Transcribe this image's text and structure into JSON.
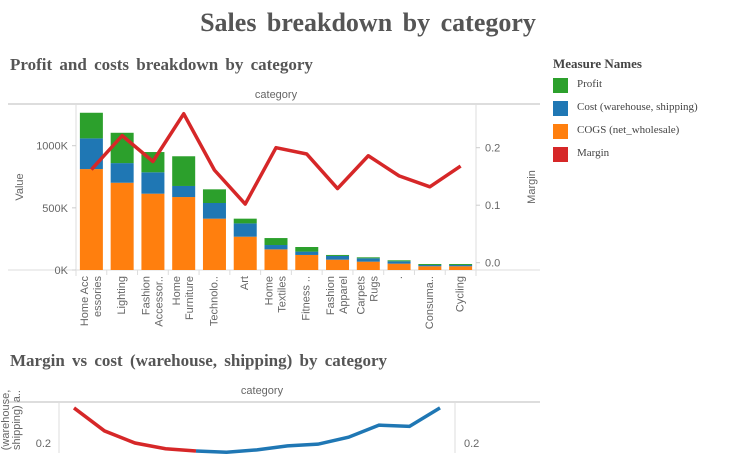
{
  "title": "Sales breakdown by category",
  "legend": {
    "title": "Measure Names",
    "items": [
      {
        "label": "Profit",
        "color": "#2ca02c"
      },
      {
        "label": "Cost (warehouse, shipping)",
        "color": "#1f77b4"
      },
      {
        "label": "COGS (net_wholesale)",
        "color": "#ff7f0e"
      },
      {
        "label": "Margin",
        "color": "#d62728"
      }
    ]
  },
  "chart_data": [
    {
      "type": "bar",
      "title": "Profit and costs breakdown by category",
      "column_header": "category",
      "ylabel": "Value",
      "y2label": "Margin",
      "ylim": [
        0,
        1300000
      ],
      "y2lim": [
        0,
        0.27
      ],
      "yticks": [
        "0K",
        "500K",
        "1000K"
      ],
      "y2ticks": [
        "0.0",
        "0.1",
        "0.2"
      ],
      "categories": [
        [
          "Home Acc",
          "essories"
        ],
        [
          "Lighting"
        ],
        [
          "Fashion",
          "Accessor.."
        ],
        [
          "Home",
          "Furniture"
        ],
        [
          "Technolo.."
        ],
        [
          "Art"
        ],
        [
          "Home",
          "Textiles"
        ],
        [
          "Fitness .."
        ],
        [
          "Fashion",
          "Apparel"
        ],
        [
          "Carpets",
          "Rugs"
        ],
        [
          "."
        ],
        [
          "Consuma.."
        ],
        [
          "Cycling"
        ]
      ],
      "stacked": true,
      "series": [
        {
          "name": "COGS (net_wholesale)",
          "values": [
            812000,
            702000,
            614000,
            587000,
            413000,
            268000,
            166000,
            121000,
            83000,
            67000,
            51000,
            30000,
            30000
          ]
        },
        {
          "name": "Cost (warehouse, shipping)",
          "values": [
            247000,
            158000,
            172000,
            89000,
            126000,
            107000,
            35000,
            27000,
            30000,
            27000,
            19000,
            10000,
            10000
          ]
        },
        {
          "name": "Profit",
          "values": [
            206000,
            244000,
            163000,
            239000,
            110000,
            38000,
            56000,
            37000,
            8000,
            8000,
            8000,
            8000,
            8000
          ]
        },
        {
          "name": "Margin",
          "axis": "right",
          "type": "line",
          "values": [
            0.162,
            0.221,
            0.176,
            0.259,
            0.161,
            0.102,
            0.2,
            0.189,
            0.129,
            0.186,
            0.151,
            0.132,
            0.168
          ]
        }
      ]
    },
    {
      "type": "line",
      "title": "Margin vs cost (warehouse, shipping) by category",
      "column_header": "category",
      "ylabel": "(warehouse, shipping) a..",
      "yticks": [
        "0.2"
      ],
      "y2ticks": [
        "0.2"
      ],
      "series": [
        {
          "color": "#d62728",
          "values": [
            0.261,
            0.221,
            0.2,
            0.19,
            0.186
          ]
        },
        {
          "color": "#1f77b4",
          "values": [
            0.186,
            0.184,
            0.188,
            0.195,
            0.198,
            0.21,
            0.231,
            0.229,
            0.261
          ]
        }
      ]
    }
  ]
}
